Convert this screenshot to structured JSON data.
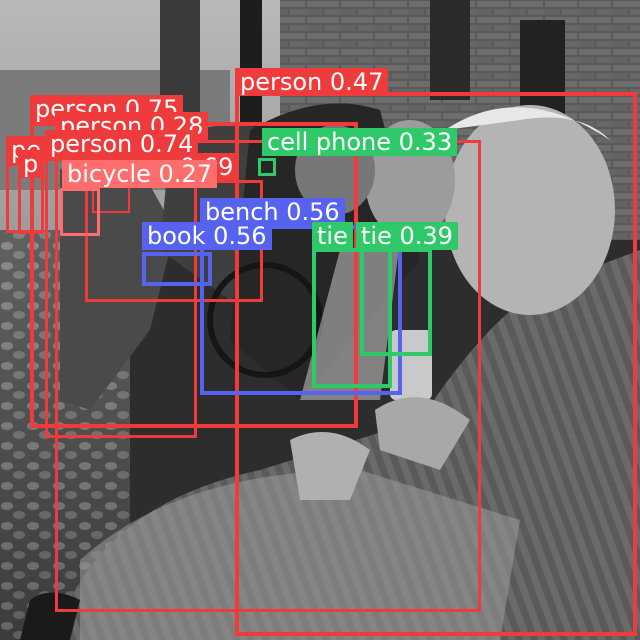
{
  "colors": {
    "person": "#ef3b3b",
    "bicycle": "#ff6d6d",
    "bench": "#5563f0",
    "book": "#5563f0",
    "cell phone": "#30c96a",
    "tie": "#30c96a"
  },
  "detections": [
    {
      "id": "person-a",
      "cls": "person",
      "label": "person 0.47",
      "score": 0.47
    },
    {
      "id": "person-b",
      "cls": "person",
      "label": "person 0.75",
      "score": 0.75
    },
    {
      "id": "person-c",
      "cls": "person",
      "label": "person 0.28",
      "score": 0.28
    },
    {
      "id": "person-d",
      "cls": "person",
      "label": "person 0.74",
      "score": 0.74
    },
    {
      "id": "person-e",
      "cls": "person",
      "label": "person 0.69",
      "score": 0.69
    },
    {
      "id": "person-f",
      "cls": "person",
      "label": "pe",
      "score": null
    },
    {
      "id": "person-g",
      "cls": "person",
      "label": "p",
      "score": null
    },
    {
      "id": "person-h",
      "cls": "person",
      "label": "person",
      "score": null
    },
    {
      "id": "bicycle",
      "cls": "bicycle",
      "label": "bicycle 0.27",
      "score": 0.27
    },
    {
      "id": "phone",
      "cls": "cell phone",
      "label": "cell phone 0.33",
      "score": 0.33
    },
    {
      "id": "bench",
      "cls": "bench",
      "label": "bench 0.56",
      "score": 0.56
    },
    {
      "id": "book",
      "cls": "book",
      "label": "book 0.56",
      "score": 0.56
    },
    {
      "id": "tie-a",
      "cls": "tie",
      "label": "tie",
      "score": null
    },
    {
      "id": "tie-b",
      "cls": "tie",
      "label": "tie 0.39",
      "score": 0.39
    }
  ]
}
